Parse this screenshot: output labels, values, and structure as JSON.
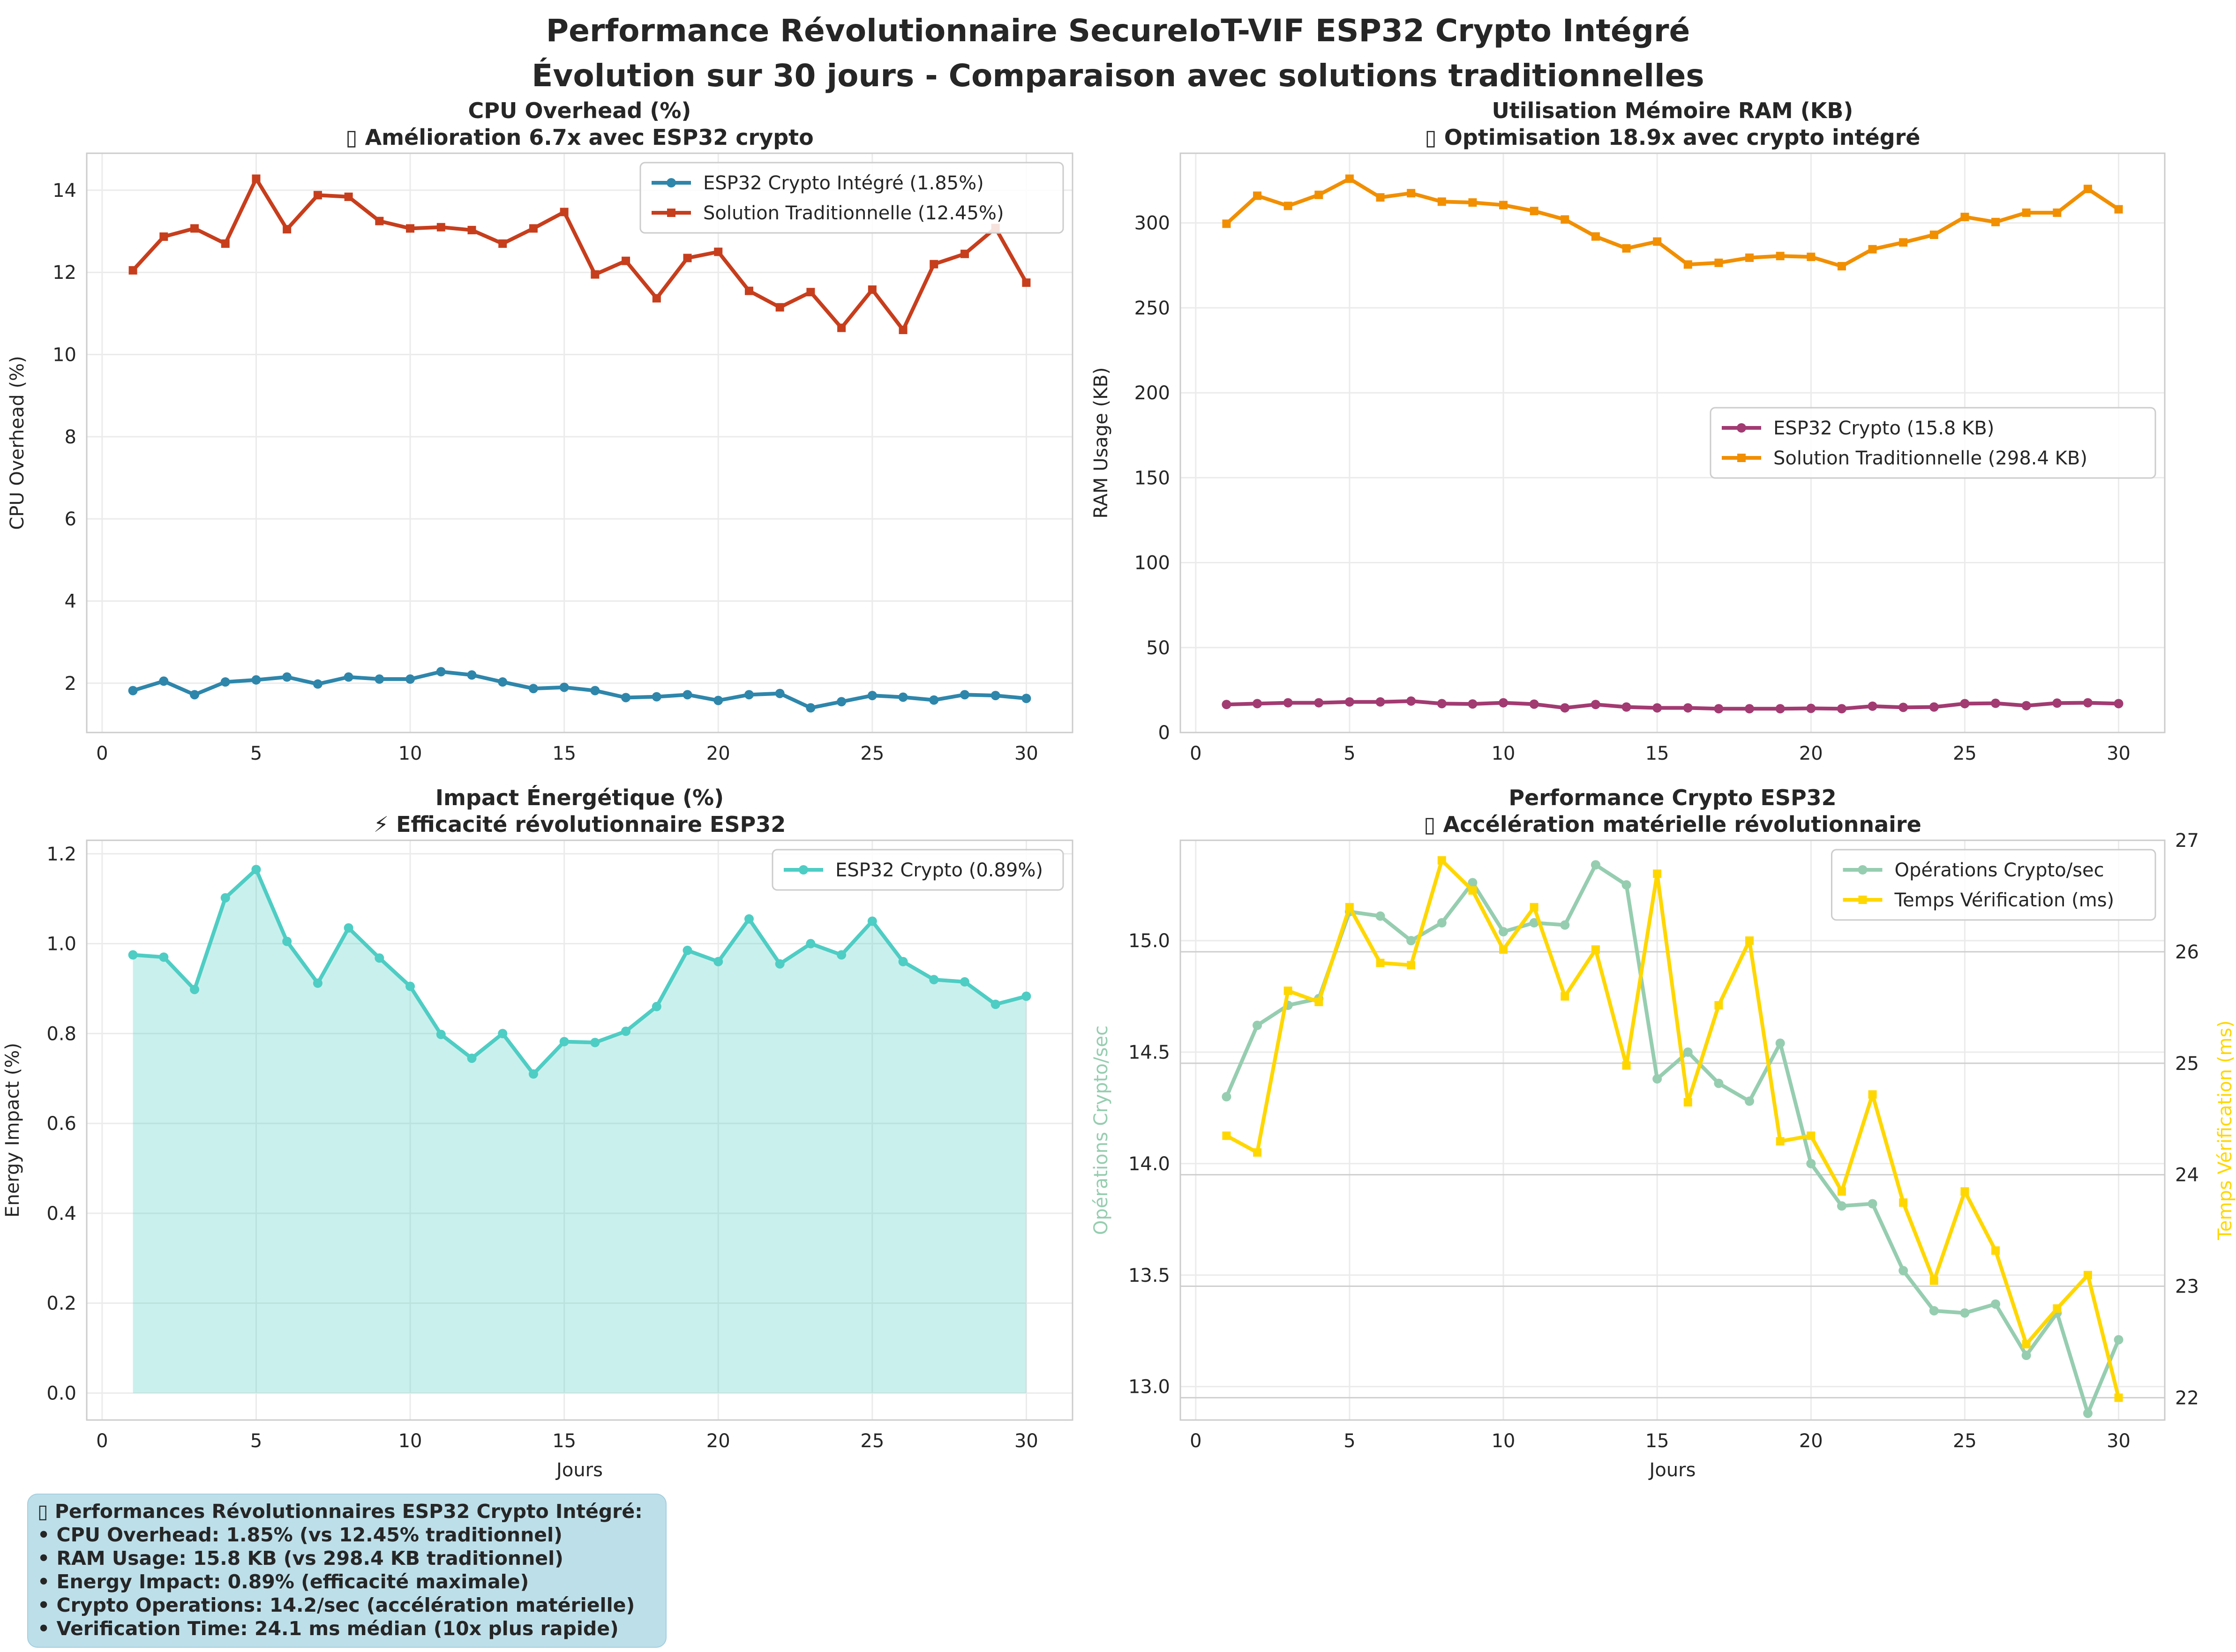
{
  "figure": {
    "title_line1": "Performance Révolutionnaire SecureIoT-VIF ESP32 Crypto Intégré",
    "title_line2": "Évolution sur 30 jours - Comparaison avec solutions traditionnelles"
  },
  "chart_data": [
    {
      "type": "line",
      "title": "CPU Overhead (%)",
      "subtitle": "▯ Amélioration 6.7x avec ESP32 crypto",
      "xlabel": "",
      "ylabel": "CPU Overhead (%)",
      "xlim": [
        -0.5,
        31.5
      ],
      "ylim": [
        0.8,
        14.9
      ],
      "xticks": [
        0,
        5,
        10,
        15,
        20,
        25,
        30
      ],
      "yticks": [
        2,
        4,
        6,
        8,
        10,
        12,
        14
      ],
      "grid": true,
      "legend": "top-right",
      "x": [
        1,
        2,
        3,
        4,
        5,
        6,
        7,
        8,
        9,
        10,
        11,
        12,
        13,
        14,
        15,
        16,
        17,
        18,
        19,
        20,
        21,
        22,
        23,
        24,
        25,
        26,
        27,
        28,
        29,
        30
      ],
      "series": [
        {
          "name": "ESP32 Crypto Intégré (1.85%)",
          "color": "#2e86ab",
          "marker": "circle",
          "values": [
            1.82,
            2.05,
            1.72,
            2.03,
            2.08,
            2.15,
            1.98,
            2.15,
            2.1,
            2.1,
            2.28,
            2.2,
            2.03,
            1.87,
            1.9,
            1.82,
            1.65,
            1.67,
            1.72,
            1.58,
            1.72,
            1.75,
            1.4,
            1.55,
            1.7,
            1.66,
            1.59,
            1.72,
            1.7,
            1.63
          ]
        },
        {
          "name": "Solution Traditionnelle (12.45%)",
          "color": "#c73e1d",
          "marker": "square",
          "values": [
            12.05,
            12.87,
            13.07,
            12.7,
            14.28,
            13.05,
            13.88,
            13.84,
            13.25,
            13.07,
            13.1,
            13.03,
            12.7,
            13.07,
            13.47,
            11.95,
            12.28,
            11.37,
            12.35,
            12.5,
            11.55,
            11.15,
            11.52,
            10.65,
            11.58,
            10.6,
            12.2,
            12.45,
            13.08,
            11.75
          ]
        }
      ]
    },
    {
      "type": "line",
      "title": "Utilisation Mémoire RAM (KB)",
      "subtitle": "▯ Optimisation 18.9x avec crypto intégré",
      "xlabel": "",
      "ylabel": "RAM Usage (KB)",
      "xlim": [
        -0.5,
        31.5
      ],
      "ylim": [
        0,
        341
      ],
      "xticks": [
        0,
        5,
        10,
        15,
        20,
        25,
        30
      ],
      "yticks": [
        0,
        50,
        100,
        150,
        200,
        250,
        300
      ],
      "grid": true,
      "legend": "center-right",
      "x": [
        1,
        2,
        3,
        4,
        5,
        6,
        7,
        8,
        9,
        10,
        11,
        12,
        13,
        14,
        15,
        16,
        17,
        18,
        19,
        20,
        21,
        22,
        23,
        24,
        25,
        26,
        27,
        28,
        29,
        30
      ],
      "series": [
        {
          "name": "ESP32 Crypto (15.8 KB)",
          "color": "#a23b72",
          "marker": "circle",
          "values": [
            16.5,
            17.0,
            17.5,
            17.5,
            18.0,
            18.0,
            18.5,
            17.0,
            16.8,
            17.5,
            16.7,
            14.5,
            16.5,
            15.0,
            14.5,
            14.5,
            14.0,
            14.0,
            14.0,
            14.2,
            14.0,
            15.5,
            14.8,
            15.0,
            17.0,
            17.2,
            15.8,
            17.3,
            17.5,
            17.0
          ]
        },
        {
          "name": "Solution Traditionnelle (298.4 KB)",
          "color": "#f18f01",
          "marker": "square",
          "values": [
            299.5,
            316.0,
            310.0,
            316.5,
            326.0,
            315.0,
            317.5,
            312.5,
            312.0,
            310.5,
            307.0,
            302.0,
            292.0,
            285.0,
            289.0,
            275.5,
            276.5,
            279.5,
            280.5,
            280.0,
            274.5,
            284.5,
            288.5,
            293.0,
            303.5,
            300.5,
            306.0,
            306.0,
            320.0,
            308.0
          ]
        }
      ]
    },
    {
      "type": "area",
      "title": "Impact Énergétique (%)",
      "subtitle": "⚡ Efficacité révolutionnaire ESP32",
      "xlabel": "Jours",
      "ylabel": "Energy Impact (%)",
      "xlim": [
        -0.5,
        31.5
      ],
      "ylim": [
        -0.06,
        1.23
      ],
      "xticks": [
        0,
        5,
        10,
        15,
        20,
        25,
        30
      ],
      "yticks": [
        0.0,
        0.2,
        0.4,
        0.6,
        0.8,
        1.0,
        1.2
      ],
      "grid": true,
      "legend": "top-right",
      "x": [
        1,
        2,
        3,
        4,
        5,
        6,
        7,
        8,
        9,
        10,
        11,
        12,
        13,
        14,
        15,
        16,
        17,
        18,
        19,
        20,
        21,
        22,
        23,
        24,
        25,
        26,
        27,
        28,
        29,
        30
      ],
      "series": [
        {
          "name": "ESP32 Crypto (0.89%)",
          "color": "#4ecdc4",
          "marker": "circle",
          "values": [
            0.975,
            0.97,
            0.898,
            1.102,
            1.165,
            1.005,
            0.912,
            1.035,
            0.968,
            0.905,
            0.798,
            0.745,
            0.8,
            0.71,
            0.782,
            0.78,
            0.805,
            0.86,
            0.985,
            0.96,
            1.055,
            0.955,
            1.0,
            0.975,
            1.05,
            0.96,
            0.92,
            0.915,
            0.865,
            0.883
          ]
        }
      ]
    },
    {
      "type": "line",
      "title": "Performance Crypto ESP32",
      "subtitle": "▯ Accélération matérielle révolutionnaire",
      "xlabel": "Jours",
      "ylabel": "Opérations Crypto/sec",
      "y2label": "Temps Vérification (ms)",
      "xlim": [
        -0.5,
        31.5
      ],
      "ylim": [
        12.85,
        15.45
      ],
      "y2lim": [
        21.8,
        27.0
      ],
      "xticks": [
        0,
        5,
        10,
        15,
        20,
        25,
        30
      ],
      "yticks": [
        13.0,
        13.5,
        14.0,
        14.5,
        15.0
      ],
      "y2ticks": [
        22,
        23,
        24,
        25,
        26,
        27
      ],
      "grid": true,
      "legend": "top-right",
      "x": [
        1,
        2,
        3,
        4,
        5,
        6,
        7,
        8,
        9,
        10,
        11,
        12,
        13,
        14,
        15,
        16,
        17,
        18,
        19,
        20,
        21,
        22,
        23,
        24,
        25,
        26,
        27,
        28,
        29,
        30
      ],
      "series": [
        {
          "name": "Opérations Crypto/sec",
          "color": "#96cdb0",
          "marker": "circle",
          "axis": "left",
          "values": [
            14.3,
            14.62,
            14.71,
            14.74,
            15.13,
            15.11,
            15.0,
            15.08,
            15.26,
            15.04,
            15.08,
            15.07,
            15.34,
            15.25,
            14.38,
            14.5,
            14.36,
            14.28,
            14.54,
            14.0,
            13.81,
            13.82,
            13.52,
            13.34,
            13.33,
            13.37,
            13.14,
            13.33,
            12.88,
            13.21
          ]
        },
        {
          "name": "Temps Vérification (ms)",
          "color": "#ffd700",
          "marker": "square",
          "axis": "right",
          "values": [
            24.35,
            24.2,
            25.65,
            25.55,
            26.4,
            25.9,
            25.88,
            26.82,
            26.55,
            26.02,
            26.4,
            25.6,
            26.02,
            24.98,
            26.7,
            24.65,
            25.52,
            26.1,
            24.3,
            24.35,
            23.85,
            24.72,
            23.75,
            23.05,
            23.85,
            23.32,
            22.48,
            22.8,
            23.1,
            22.0
          ]
        }
      ]
    }
  ],
  "summary": {
    "line1": "▯ Performances Révolutionnaires ESP32 Crypto Intégré:",
    "line2": "• CPU Overhead: 1.85% (vs 12.45% traditionnel)",
    "line3": "• RAM Usage: 15.8 KB (vs 298.4 KB traditionnel)",
    "line4": "• Energy Impact: 0.89% (efficacité maximale)",
    "line5": "• Crypto Operations: 14.2/sec (accélération matérielle)",
    "line6": "• Verification Time: 24.1 ms médian (10x plus rapide)"
  }
}
